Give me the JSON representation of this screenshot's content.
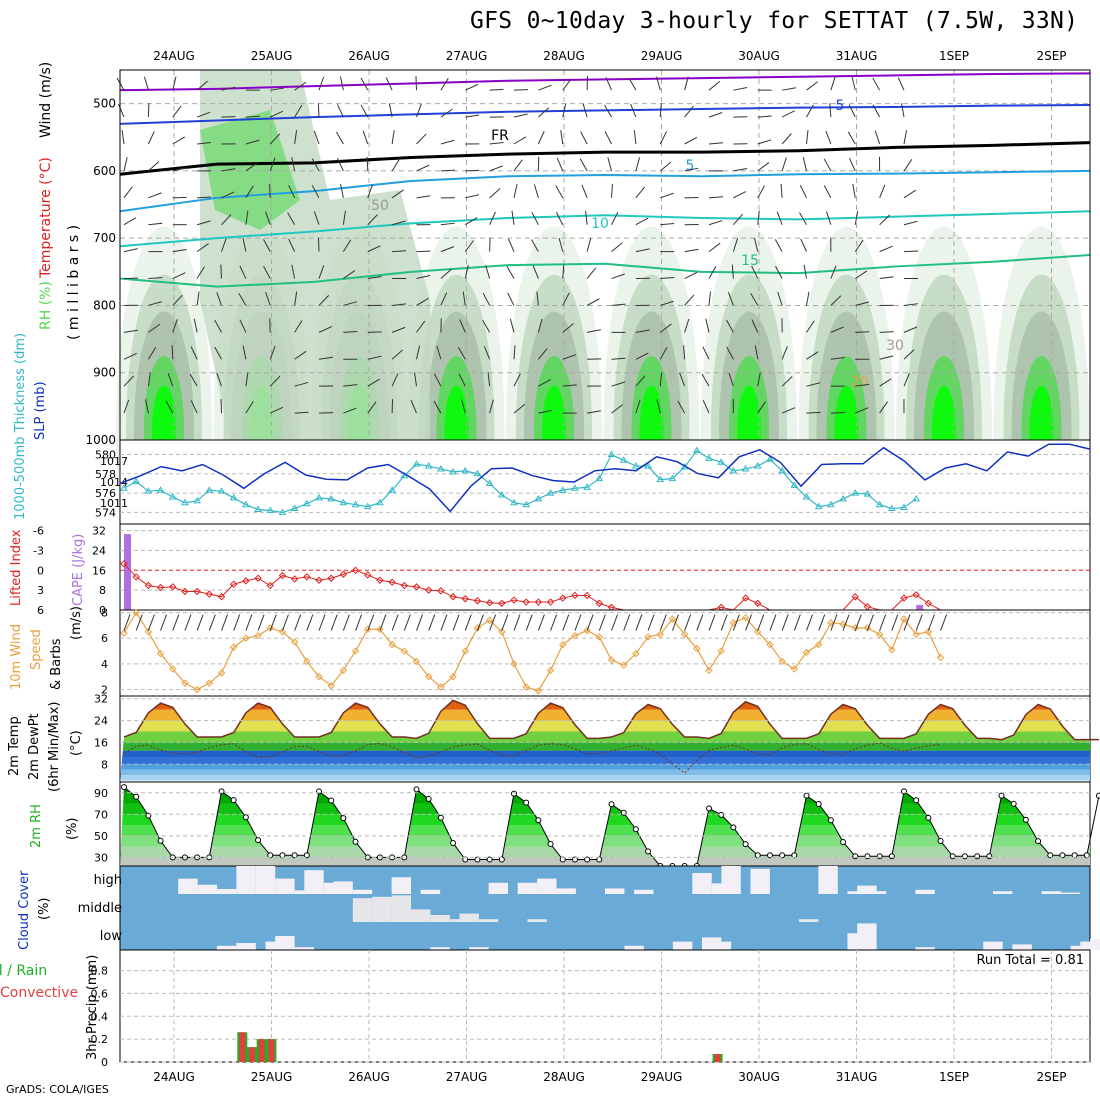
{
  "title": "GFS 0~10day 3-hourly for SETTAT (7.5W, 33N)",
  "footer": "GrADS: COLA/IGES",
  "dates": [
    "24AUG",
    "25AUG",
    "26AUG",
    "27AUG",
    "28AUG",
    "29AUG",
    "30AUG",
    "31AUG",
    "1SEP",
    "2SEP"
  ],
  "colors": {
    "rh_light": "#e6f2e6",
    "rh_mid": "#c2d8c2",
    "rh_dark": "#a9bfa9",
    "rh_green": "#55d855",
    "rh_bright": "#00ff00",
    "temp_purple": "#8a00c8",
    "temp_blue": "#2040d8",
    "temp_cyan": "#20a0e0",
    "temp_teal": "#20c8c0",
    "temp_green": "#20c080",
    "freezing": "#000000",
    "thickness": "#30b8c8",
    "slp": "#1030c0",
    "lifted": "#e02020",
    "cape": "#b070e0",
    "wind": "#e8a040",
    "rain": "#e04040",
    "total": "#20b020",
    "cloud_bg": "#6aaad6"
  },
  "chart_data": [
    {
      "type": "heatmap",
      "panel": "upper-air",
      "ylabel_parts": [
        "RH (%)",
        "Temperature (°C)",
        "Wind (m/s)"
      ],
      "yunits": "( m i l l i b a r s )",
      "yticks": [
        500,
        600,
        700,
        800,
        900,
        1000
      ],
      "ylim": [
        1000,
        450
      ],
      "isotherm_labels": [
        {
          "text": "5",
          "series": "-5 °C"
        },
        {
          "text": "5",
          "series": "5 °C"
        },
        {
          "text": "10",
          "series": "10 °C"
        },
        {
          "text": "15",
          "series": "15 °C"
        },
        {
          "text": "FR",
          "series": "freezing level"
        },
        {
          "text": "50",
          "series": "RH contour"
        },
        {
          "text": "30",
          "series": "RH contour"
        },
        {
          "text": "20",
          "series": "RH contour"
        }
      ],
      "isotherm_levels_mb": {
        "m10": [
          480,
          478,
          474,
          470,
          466,
          464,
          462,
          460,
          458,
          456,
          455
        ],
        "m5": [
          530,
          525,
          520,
          516,
          512,
          510,
          508,
          506,
          505,
          503,
          502
        ],
        "fr": [
          605,
          590,
          588,
          580,
          575,
          572,
          572,
          570,
          565,
          562,
          558
        ],
        "p5": [
          660,
          640,
          630,
          615,
          608,
          606,
          608,
          605,
          604,
          602,
          600
        ],
        "p10": [
          712,
          700,
          690,
          678,
          670,
          666,
          670,
          672,
          668,
          664,
          660
        ],
        "p15": [
          760,
          772,
          765,
          750,
          740,
          738,
          750,
          752,
          742,
          735,
          725
        ]
      }
    },
    {
      "type": "line",
      "panel": "thickness-slp",
      "ylabel_left": "1000-500mb Thickness (dm)",
      "ylabel_right": "SLP (mb)",
      "yticks_left": [
        574,
        576,
        578,
        580
      ],
      "yticks_right": [
        1011,
        1014,
        1017
      ],
      "ylim_left": [
        572.8,
        581.5
      ],
      "series": [
        {
          "name": "Thickness",
          "values": [
            576.5,
            577.2,
            576.2,
            576.3,
            575.6,
            575.0,
            575.2,
            576.3,
            576.2,
            575.5,
            574.8,
            574.3,
            574.2,
            574.0,
            574.4,
            574.9,
            575.5,
            575.4,
            575.0,
            574.8,
            574.6,
            575.0,
            576.3,
            577.8,
            579.0,
            578.8,
            578.5,
            578.2,
            578.3,
            578.0,
            577.0,
            575.8,
            575.0,
            574.8,
            575.4,
            576.0,
            576.3,
            576.5,
            576.6,
            577.5,
            580.0,
            579.4,
            578.8,
            578.8,
            577.4,
            577.5,
            578.7,
            580.4,
            579.6,
            579.2,
            578.3,
            578.5,
            578.8,
            579.5,
            578.3,
            576.8,
            575.6,
            574.6,
            574.8,
            575.4,
            576.0,
            575.9,
            574.8,
            574.4,
            574.5,
            575.4
          ]
        },
        {
          "name": "SLP",
          "values": [
            1013.8,
            1014.9,
            1016.2,
            1015.6,
            1016.5,
            1015.0,
            1013.1,
            1015.2,
            1016.8,
            1015.0,
            1014.4,
            1014.3,
            1016.0,
            1016.5,
            1014.8,
            1013.0,
            1009.8,
            1013.4,
            1015.9,
            1016.0,
            1014.9,
            1014.2,
            1014.0,
            1015.6,
            1015.9,
            1015.6,
            1017.6,
            1016.9,
            1015.2,
            1014.6,
            1017.6,
            1018.6,
            1016.8,
            1013.4,
            1016.5,
            1016.6,
            1016.6,
            1018.9,
            1017.0,
            1014.3,
            1016.0,
            1016.6,
            1015.6,
            1018.3,
            1017.7,
            1019.4,
            1019.4,
            1018.7
          ]
        }
      ]
    },
    {
      "type": "line",
      "panel": "lifted-cape",
      "ylabel_left": "Lifted Index",
      "ylabel_right": "CAPE (J/kg)",
      "yticks_left": [
        "-6",
        "-3",
        "0",
        "3",
        "6"
      ],
      "yticks_right": [
        "32",
        "24",
        "16",
        "8",
        "0"
      ],
      "series": [
        {
          "name": "Lifted Index",
          "values": [
            -1.0,
            1.0,
            2.3,
            2.6,
            2.5,
            3.2,
            3.2,
            3.6,
            4.0,
            2.1,
            1.6,
            1.2,
            2.3,
            0.8,
            1.3,
            1.0,
            1.5,
            1.2,
            0.6,
            0.0,
            0.7,
            1.5,
            1.8,
            2.3,
            2.5,
            3.0,
            3.1,
            4.0,
            4.3,
            4.6,
            4.9,
            5.0,
            4.5,
            4.8,
            4.8,
            4.8,
            4.2,
            3.8,
            3.8,
            5.0,
            5.6,
            6.0,
            6.0,
            6.0,
            6.0,
            6.0,
            6.0,
            6.0,
            6.0,
            5.6,
            6.0,
            4.2,
            5.0,
            6.0,
            6.0,
            6.0,
            6.0,
            6.0,
            6.0,
            6.0,
            4.0,
            5.5,
            6.0,
            6.0,
            4.2,
            3.7,
            5.0,
            6.0
          ]
        },
        {
          "name": "CAPE",
          "bars": [
            {
              "step": 0,
              "value": 30
            },
            {
              "step": 65,
              "value": 2
            }
          ]
        }
      ]
    },
    {
      "type": "line",
      "panel": "wind",
      "ylabel": "10m Wind Speed & Barbs (m/s)",
      "yticks": [
        2,
        4,
        6,
        8
      ],
      "ylim": [
        1.5,
        8.2
      ],
      "series": [
        {
          "name": "10m Wind Speed",
          "values": [
            6.4,
            8.0,
            6.5,
            4.8,
            3.6,
            2.5,
            2.0,
            2.5,
            3.3,
            5.3,
            6.0,
            6.2,
            6.8,
            6.5,
            5.7,
            4.2,
            3.0,
            2.3,
            3.5,
            5.0,
            6.7,
            6.7,
            5.5,
            5.0,
            4.2,
            3.0,
            2.2,
            3.0,
            5.0,
            6.8,
            7.4,
            6.5,
            4.0,
            2.2,
            1.9,
            3.5,
            5.5,
            6.2,
            6.6,
            6.1,
            4.3,
            3.9,
            4.8,
            6.1,
            6.3,
            7.5,
            6.3,
            5.2,
            3.5,
            5.0,
            7.2,
            7.6,
            6.5,
            5.5,
            4.2,
            3.6,
            4.9,
            5.5,
            7.2,
            7.1,
            6.8,
            6.8,
            6.3,
            5.1,
            7.5,
            6.3,
            6.5,
            4.5
          ]
        }
      ]
    },
    {
      "type": "area",
      "panel": "temperature",
      "ylabel": "2m Temp 2m DewPt (6hr Min/Max) (°C)",
      "yticks": [
        8,
        16,
        24,
        32
      ],
      "ylim": [
        1.5,
        33
      ],
      "series": [
        {
          "name": "2m Temp",
          "period_peaks": [
            30.5,
            30.5,
            30.5,
            31.5,
            30.5,
            30.0,
            31.0,
            30.0,
            30.0,
            30.0
          ],
          "period_mins": [
            18.0,
            18.0,
            18.0,
            17.5,
            17.5,
            18.0,
            17.5,
            17.5,
            17.5,
            17.0
          ]
        },
        {
          "name": "2m DewPt",
          "values": [
            12.0,
            14.5,
            15.0,
            13.2,
            12.0,
            11.8,
            12.5,
            14.0,
            15.2,
            15.5,
            12.5,
            10.5,
            10.8,
            12.6,
            14.4,
            14.6,
            12.6,
            11.0,
            11.2,
            12.9,
            15.2,
            15.6,
            14.4,
            12.3,
            10.4,
            11.0,
            12.4,
            14.3,
            15.0,
            15.4,
            13.0,
            11.3,
            11.0,
            13.0,
            15.0,
            15.5,
            15.2,
            13.6,
            11.8,
            12.0,
            12.8,
            14.0,
            15.0,
            13.6,
            11.8,
            8.2,
            4.8,
            9.4,
            13.1,
            14.1,
            15.0,
            13.6,
            11.7,
            11.5,
            14.0,
            15.3,
            15.5,
            13.4,
            11.8,
            11.7,
            13.7,
            15.0,
            15.8,
            13.8,
            12.7,
            13.9,
            14.8,
            15.3
          ]
        }
      ]
    },
    {
      "type": "area",
      "panel": "rh",
      "ylabel": "2m RH (%)",
      "yticks": [
        30,
        50,
        70,
        90
      ],
      "ylim": [
        22,
        100
      ],
      "series": [
        {
          "name": "2m RH",
          "period_peaks": [
            96,
            92,
            92,
            94,
            90,
            80,
            76,
            88,
            92,
            88
          ],
          "period_mins": [
            30,
            32,
            30,
            28,
            28,
            22,
            32,
            31,
            31,
            32
          ]
        }
      ]
    },
    {
      "type": "bar",
      "panel": "cloud",
      "ylabel": "Cloud Cover (%)",
      "categories": [
        "high",
        "middle",
        "low"
      ],
      "series": [
        {
          "name": "high",
          "steps": [
            [
              4,
              0.0
            ],
            [
              6,
              0.55
            ],
            [
              8,
              0.33
            ],
            [
              9,
              0.15
            ],
            [
              10,
              0.18
            ],
            [
              12,
              1.0
            ],
            [
              14,
              1.0
            ],
            [
              16,
              0.55
            ],
            [
              18,
              0.13
            ],
            [
              19,
              0.85
            ],
            [
              21,
              0.4
            ],
            [
              22,
              0.45
            ],
            [
              24,
              0.15
            ],
            [
              28,
              0.6
            ],
            [
              31,
              0.15
            ],
            [
              35,
              0.0
            ],
            [
              38,
              0.4
            ],
            [
              41,
              0.4
            ],
            [
              43,
              0.55
            ],
            [
              45,
              0.2
            ],
            [
              50,
              0.2
            ],
            [
              53,
              0.15
            ],
            [
              55,
              0.0
            ],
            [
              59,
              0.75
            ],
            [
              61,
              0.38
            ],
            [
              62,
              1.0
            ],
            [
              65,
              0.9
            ],
            [
              72,
              1.0
            ],
            [
              75,
              0.1
            ],
            [
              76,
              0.3
            ],
            [
              77,
              0.1
            ],
            [
              82,
              0.15
            ],
            [
              90,
              0.1
            ],
            [
              91,
              0.0
            ],
            [
              95,
              0.1
            ],
            [
              97,
              0.05
            ]
          ]
        },
        {
          "name": "middle",
          "steps": [
            [
              24,
              0.85
            ],
            [
              26,
              0.9
            ],
            [
              28,
              0.95
            ],
            [
              30,
              0.45
            ],
            [
              32,
              0.25
            ],
            [
              34,
              0.1
            ],
            [
              35,
              0.3
            ],
            [
              37,
              0.1
            ],
            [
              42,
              0.1
            ],
            [
              70,
              0.1
            ]
          ]
        },
        {
          "name": "low",
          "steps": [
            [
              10,
              0.15
            ],
            [
              12,
              0.25
            ],
            [
              15,
              0.3
            ],
            [
              16,
              0.5
            ],
            [
              18,
              0.1
            ],
            [
              32,
              0.1
            ],
            [
              36,
              0.1
            ],
            [
              52,
              0.15
            ],
            [
              57,
              0.3
            ],
            [
              60,
              0.45
            ],
            [
              61,
              0.3
            ],
            [
              75,
              0.6
            ],
            [
              76,
              0.95
            ],
            [
              82,
              0.1
            ],
            [
              89,
              0.3
            ],
            [
              92,
              0.2
            ],
            [
              98,
              0.15
            ],
            [
              99,
              0.3
            ],
            [
              100,
              0.4
            ]
          ]
        }
      ]
    },
    {
      "type": "bar",
      "panel": "precip",
      "ylabel": "3hr Precip (mm)",
      "ylabel_left": [
        "Total / Rain",
        "Convective"
      ],
      "yticks": [
        0,
        0.2,
        0.4,
        0.6,
        0.8
      ],
      "ylim": [
        0,
        0.98
      ],
      "annotation": "Run Total = 0.81",
      "series": [
        {
          "name": "Total",
          "bars": [
            {
              "step": 9,
              "value": 0.26
            },
            {
              "step": 10,
              "value": 0.13
            },
            {
              "step": 11,
              "value": 0.2
            },
            {
              "step": 12,
              "value": 0.2
            },
            {
              "step": 58,
              "value": 0.07
            }
          ]
        },
        {
          "name": "Convective",
          "bars": [
            {
              "step": 9,
              "value": 0.26
            },
            {
              "step": 10,
              "value": 0.13
            },
            {
              "step": 11,
              "value": 0.2
            },
            {
              "step": 12,
              "value": 0.2
            },
            {
              "step": 58,
              "value": 0.07
            }
          ]
        }
      ]
    }
  ]
}
